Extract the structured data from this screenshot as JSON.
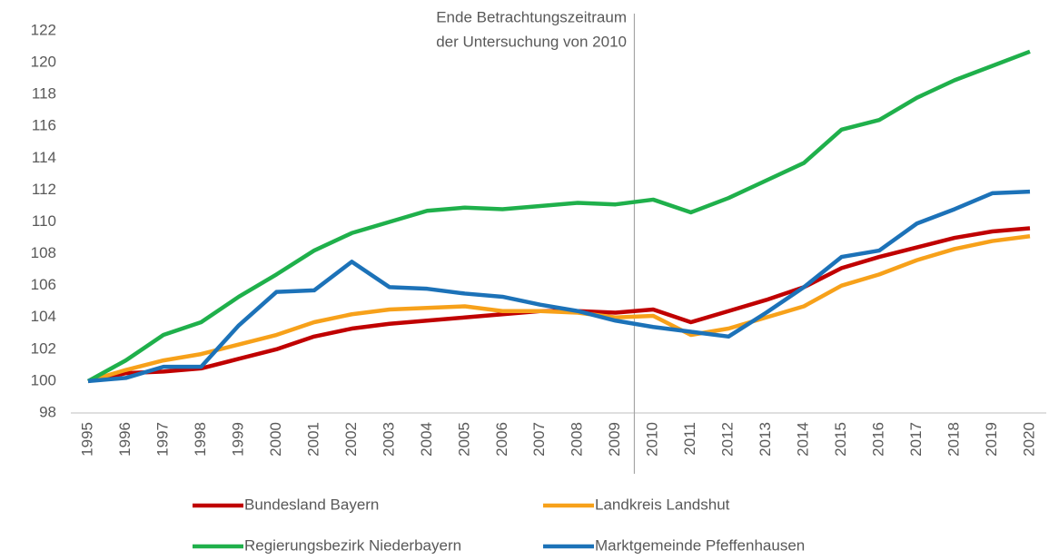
{
  "chart_data": {
    "type": "line",
    "annotation": [
      "Ende Betrachtungszeitraum",
      "der Untersuchung von 2010"
    ],
    "categories": [
      "1995",
      "1996",
      "1997",
      "1998",
      "1999",
      "2000",
      "2001",
      "2002",
      "2003",
      "2004",
      "2005",
      "2006",
      "2007",
      "2008",
      "2009",
      "2010",
      "2011",
      "2012",
      "2013",
      "2014",
      "2015",
      "2016",
      "2017",
      "2018",
      "2019",
      "2020"
    ],
    "series": [
      {
        "name": "Bundesland Bayern",
        "color": "#c00000",
        "values": [
          100,
          100.5,
          100.6,
          100.8,
          101.4,
          102.0,
          102.8,
          103.3,
          103.6,
          103.8,
          104.0,
          104.2,
          104.4,
          104.4,
          104.3,
          104.5,
          103.7,
          104.4,
          105.1,
          105.9,
          107.1,
          107.8,
          108.4,
          109.0,
          109.4,
          109.6
        ]
      },
      {
        "name": "Landkreis Landshut",
        "color": "#f7a11a",
        "values": [
          100,
          100.7,
          101.3,
          101.7,
          102.3,
          102.9,
          103.7,
          104.2,
          104.5,
          104.6,
          104.7,
          104.4,
          104.4,
          104.3,
          104.0,
          104.1,
          102.9,
          103.3,
          104.0,
          104.7,
          106.0,
          106.7,
          107.6,
          108.3,
          108.8,
          109.1
        ]
      },
      {
        "name": "Regierungsbezirk Niederbayern",
        "color": "#1fb04b",
        "values": [
          100,
          101.3,
          102.9,
          103.7,
          105.3,
          106.7,
          108.2,
          109.3,
          110.0,
          110.7,
          110.9,
          110.8,
          111.0,
          111.2,
          111.1,
          111.4,
          110.6,
          111.5,
          112.6,
          113.7,
          115.8,
          116.4,
          117.8,
          118.9,
          119.8,
          120.7
        ]
      },
      {
        "name": "Marktgemeinde Pfeffenhausen",
        "color": "#1c72b8",
        "values": [
          100,
          100.2,
          100.9,
          100.9,
          103.5,
          105.6,
          105.7,
          107.5,
          105.9,
          105.8,
          105.5,
          105.3,
          104.8,
          104.4,
          103.8,
          103.4,
          103.1,
          102.8,
          104.3,
          105.9,
          107.8,
          108.2,
          109.9,
          110.8,
          111.8,
          111.9
        ]
      }
    ],
    "ylim": [
      98,
      122
    ],
    "yticks": [
      98,
      100,
      102,
      104,
      106,
      108,
      110,
      112,
      114,
      116,
      118,
      120,
      122
    ],
    "grid": false
  }
}
